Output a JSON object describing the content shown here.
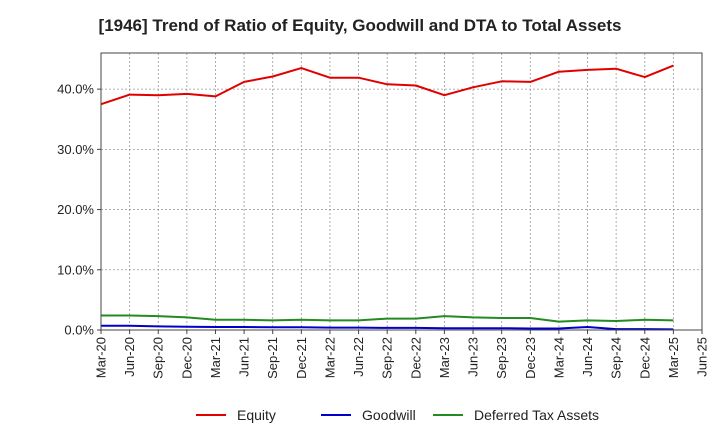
{
  "chart_data": {
    "type": "line",
    "title": "[1946]  Trend of Ratio of Equity, Goodwill and DTA to Total Assets",
    "xlabel": "",
    "ylabel": "",
    "x_ticks": [
      "Mar-20",
      "Jun-20",
      "Sep-20",
      "Dec-20",
      "Mar-21",
      "Jun-21",
      "Sep-21",
      "Dec-21",
      "Mar-22",
      "Jun-22",
      "Sep-22",
      "Dec-22",
      "Mar-23",
      "Jun-23",
      "Sep-23",
      "Dec-23",
      "Mar-24",
      "Jun-24",
      "Sep-24",
      "Dec-24",
      "Mar-25",
      "Jun-25"
    ],
    "y_ticks": [
      "0.0%",
      "10.0%",
      "20.0%",
      "30.0%",
      "40.0%"
    ],
    "y_tick_values": [
      0,
      10,
      20,
      30,
      40
    ],
    "ylim": [
      0,
      46
    ],
    "grid": true,
    "legend_position": "bottom",
    "x": [
      "Mar-20",
      "Jun-20",
      "Sep-20",
      "Dec-20",
      "Mar-21",
      "Jun-21",
      "Sep-21",
      "Dec-21",
      "Mar-22",
      "Jun-22",
      "Sep-22",
      "Dec-22",
      "Mar-23",
      "Jun-23",
      "Sep-23",
      "Dec-23",
      "Mar-24",
      "Jun-24",
      "Sep-24",
      "Dec-24",
      "Mar-25"
    ],
    "series": [
      {
        "name": "Equity",
        "color": "#e00000",
        "values": [
          37.5,
          39.1,
          39.0,
          39.2,
          38.8,
          41.2,
          42.1,
          43.5,
          41.9,
          41.9,
          40.8,
          40.6,
          39.0,
          40.3,
          41.3,
          41.2,
          42.9,
          43.2,
          43.4,
          42.0,
          43.9
        ]
      },
      {
        "name": "Goodwill",
        "color": "#0000cc",
        "values": [
          0.7,
          0.7,
          0.6,
          0.55,
          0.5,
          0.5,
          0.45,
          0.45,
          0.4,
          0.4,
          0.35,
          0.35,
          0.3,
          0.3,
          0.3,
          0.25,
          0.25,
          0.5,
          0.15,
          0.15,
          0.1
        ]
      },
      {
        "name": "Deferred Tax Assets",
        "color": "#228b22",
        "values": [
          2.4,
          2.4,
          2.3,
          2.1,
          1.7,
          1.7,
          1.6,
          1.7,
          1.6,
          1.6,
          1.9,
          1.9,
          2.3,
          2.1,
          2.0,
          2.0,
          1.4,
          1.6,
          1.5,
          1.7,
          1.6
        ]
      }
    ]
  }
}
